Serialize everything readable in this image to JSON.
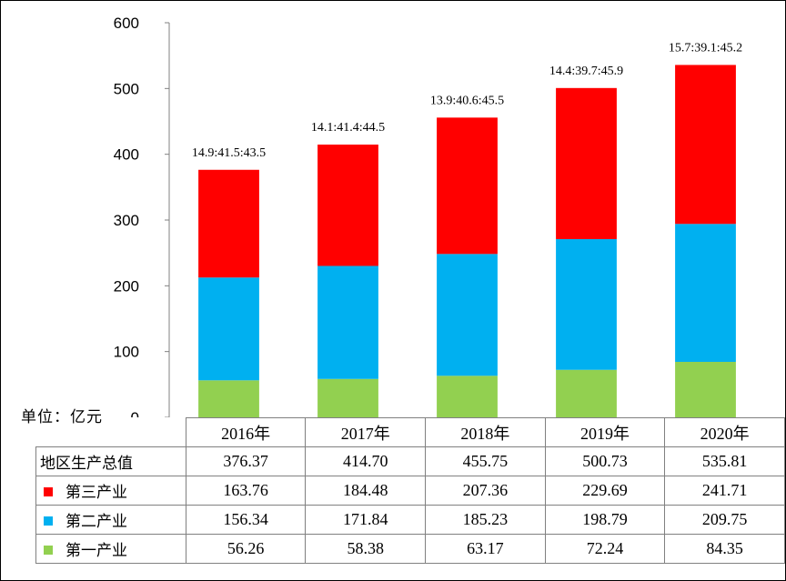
{
  "chart_data": {
    "type": "bar",
    "stacked": true,
    "unit_label": "单位：亿元",
    "categories": [
      "2016年",
      "2017年",
      "2018年",
      "2019年",
      "2020年"
    ],
    "ylim": [
      0,
      600
    ],
    "yticks": [
      "0",
      "100",
      "200",
      "300",
      "400",
      "500",
      "600"
    ],
    "totals": {
      "name": "地区生产总值",
      "values": [
        "376.37",
        "414.70",
        "455.75",
        "500.73",
        "535.81"
      ]
    },
    "series": [
      {
        "name": "第三产业",
        "color": "#ff0000",
        "values": [
          163.76,
          184.48,
          207.36,
          229.69,
          241.71
        ],
        "labels": [
          "163.76",
          "184.48",
          "207.36",
          "229.69",
          "241.71"
        ]
      },
      {
        "name": "第二产业",
        "color": "#00b0f0",
        "values": [
          156.34,
          171.84,
          185.23,
          198.79,
          209.75
        ],
        "labels": [
          "156.34",
          "171.84",
          "185.23",
          "198.79",
          "209.75"
        ]
      },
      {
        "name": "第一产业",
        "color": "#92d050",
        "values": [
          56.26,
          58.38,
          63.17,
          72.24,
          84.35
        ],
        "labels": [
          "56.26",
          "58.38",
          "63.17",
          "72.24",
          "84.35"
        ]
      }
    ],
    "annotations": [
      "14.9:41.5:43.5",
      "14.1:41.4:44.5",
      "13.9:40.6:45.5",
      "14.4:39.7:45.9",
      "15.7:39.1:45.2"
    ],
    "grid": false,
    "legend": "table"
  }
}
